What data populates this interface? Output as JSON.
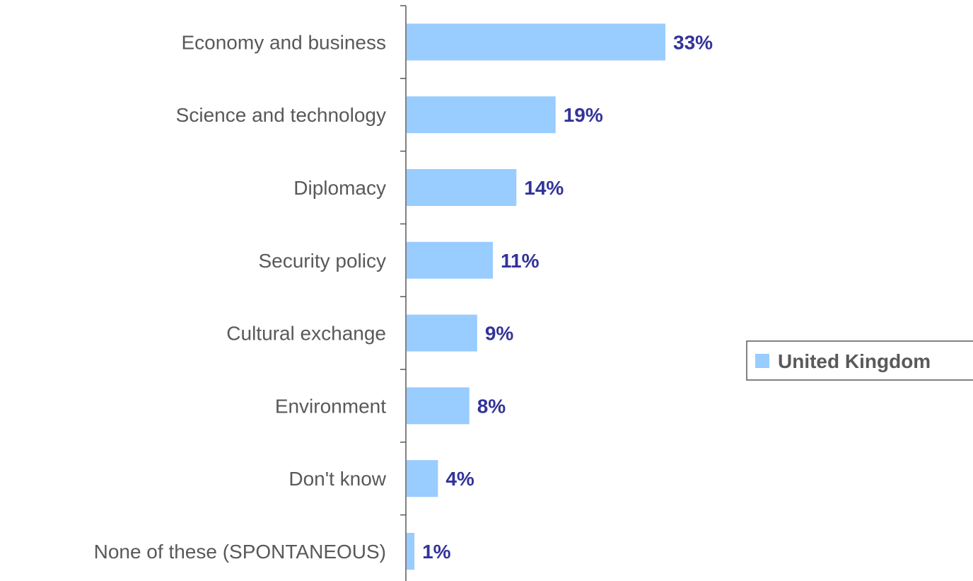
{
  "chart_data": {
    "type": "bar",
    "orientation": "horizontal",
    "categories": [
      "Economy and business",
      "Science and technology",
      "Diplomacy",
      "Security policy",
      "Cultural exchange",
      "Environment",
      "Don't know",
      "None of these (SPONTANEOUS)"
    ],
    "series": [
      {
        "name": "United Kingdom",
        "values": [
          33,
          19,
          14,
          11,
          9,
          8,
          4,
          1
        ],
        "color": "#99ccff"
      }
    ],
    "value_labels": [
      "33%",
      "19%",
      "14%",
      "11%",
      "9%",
      "8%",
      "4%",
      "1%"
    ],
    "value_label_color": "#333399",
    "grid": false,
    "legend_position": "right"
  }
}
